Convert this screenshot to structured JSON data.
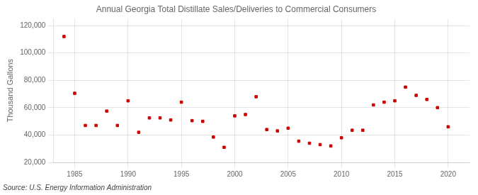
{
  "chart_data": {
    "type": "scatter",
    "title": "Annual Georgia Total Distillate Sales/Deliveries to Commercial Consumers",
    "ylabel": "Thousand Gallons",
    "annotation": "Source: U.S. Energy Information Administration",
    "x": [
      1984,
      1985,
      1986,
      1987,
      1988,
      1989,
      1990,
      1991,
      1992,
      1993,
      1994,
      1995,
      1996,
      1997,
      1998,
      1999,
      2000,
      2001,
      2002,
      2003,
      2004,
      2005,
      2006,
      2007,
      2008,
      2009,
      2010,
      2011,
      2012,
      2013,
      2014,
      2015,
      2016,
      2017,
      2018,
      2019,
      2020
    ],
    "values": [
      112000,
      70500,
      47000,
      47000,
      57500,
      47000,
      65000,
      42000,
      52500,
      52500,
      51000,
      64000,
      50500,
      50000,
      38500,
      31000,
      54000,
      55000,
      68000,
      44000,
      43000,
      45000,
      35500,
      34000,
      33000,
      32000,
      38000,
      43500,
      43500,
      62000,
      64000,
      65000,
      75000,
      69000,
      66000,
      60000,
      46000
    ],
    "color": "#CC0000",
    "marker": "square",
    "xlim": [
      1983,
      2022
    ],
    "xticks": [
      1985,
      1990,
      1995,
      2000,
      2005,
      2010,
      2015,
      2020
    ],
    "ylim": [
      20000,
      125000
    ],
    "yticks": [
      {
        "value": 20000,
        "label": "20,000"
      },
      {
        "value": 40000,
        "label": "40,000"
      },
      {
        "value": 60000,
        "label": "60,000"
      },
      {
        "value": 80000,
        "label": "80,000"
      },
      {
        "value": 100000,
        "label": "100,000"
      },
      {
        "value": 120000,
        "label": "120,000"
      }
    ],
    "grid": true
  }
}
